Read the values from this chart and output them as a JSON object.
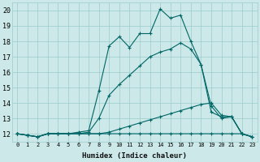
{
  "xlabel": "Humidex (Indice chaleur)",
  "bg_color": "#cce8e8",
  "grid_color": "#99cccc",
  "line_color": "#006666",
  "xlim": [
    -0.5,
    23.5
  ],
  "ylim": [
    11.5,
    20.5
  ],
  "xticks": [
    0,
    1,
    2,
    3,
    4,
    5,
    6,
    7,
    8,
    9,
    10,
    11,
    12,
    13,
    14,
    15,
    16,
    17,
    18,
    19,
    20,
    21,
    22,
    23
  ],
  "yticks": [
    12,
    13,
    14,
    15,
    16,
    17,
    18,
    19,
    20
  ],
  "series": [
    [
      12.0,
      11.9,
      11.8,
      12.0,
      12.0,
      12.0,
      12.1,
      12.2,
      14.8,
      17.7,
      18.3,
      17.6,
      18.5,
      18.5,
      20.1,
      19.5,
      19.7,
      18.0,
      16.5,
      13.8,
      13.0,
      13.1,
      12.0,
      11.8
    ],
    [
      12.0,
      11.9,
      11.8,
      12.0,
      12.0,
      12.0,
      12.0,
      12.1,
      13.0,
      14.5,
      15.2,
      15.8,
      16.4,
      17.0,
      17.3,
      17.5,
      17.9,
      17.5,
      16.5,
      13.4,
      13.1,
      13.1,
      12.0,
      11.8
    ],
    [
      12.0,
      11.9,
      11.8,
      12.0,
      12.0,
      12.0,
      12.0,
      12.0,
      12.0,
      12.1,
      12.3,
      12.5,
      12.7,
      12.9,
      13.1,
      13.3,
      13.5,
      13.7,
      13.9,
      14.0,
      13.2,
      13.1,
      12.0,
      11.8
    ],
    [
      12.0,
      11.9,
      11.8,
      12.0,
      12.0,
      12.0,
      12.0,
      12.0,
      12.0,
      12.0,
      12.0,
      12.0,
      12.0,
      12.0,
      12.0,
      12.0,
      12.0,
      12.0,
      12.0,
      12.0,
      12.0,
      12.0,
      12.0,
      11.8
    ]
  ]
}
